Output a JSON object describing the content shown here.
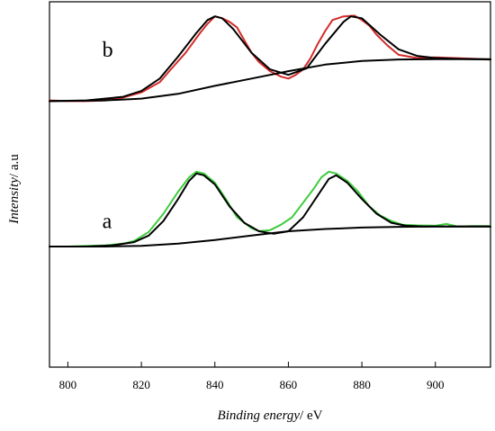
{
  "chart_data": {
    "type": "line",
    "xlabel_italic": "Binding energy",
    "xlabel_unit": "/ eV",
    "ylabel_italic": "Intensity",
    "ylabel_unit": "/ a.u",
    "xlim": [
      795,
      915
    ],
    "ylim": [
      0,
      1
    ],
    "xticks": [
      {
        "value": 800,
        "label": "800"
      },
      {
        "value": 820,
        "label": "820"
      },
      {
        "value": 840,
        "label": "840"
      },
      {
        "value": 860,
        "label": "860"
      },
      {
        "value": 880,
        "label": "880"
      },
      {
        "value": 900,
        "label": "900"
      }
    ],
    "grid": false,
    "legend": "none",
    "curve_labels": [
      {
        "text": "b",
        "x": 802,
        "y": 0.85
      },
      {
        "text": "a",
        "x": 802,
        "y": 0.38
      }
    ],
    "series": [
      {
        "name": "",
        "role": "measured-b",
        "color": "#d42a2a",
        "stroke_width": 2,
        "points": [
          [
            795,
            0.73
          ],
          [
            800,
            0.728
          ],
          [
            805,
            0.728
          ],
          [
            810,
            0.73
          ],
          [
            815,
            0.738
          ],
          [
            820,
            0.752
          ],
          [
            825,
            0.78
          ],
          [
            828,
            0.815
          ],
          [
            832,
            0.86
          ],
          [
            836,
            0.915
          ],
          [
            838,
            0.94
          ],
          [
            840,
            0.96
          ],
          [
            842,
            0.955
          ],
          [
            844,
            0.945
          ],
          [
            846,
            0.93
          ],
          [
            848,
            0.895
          ],
          [
            850,
            0.86
          ],
          [
            852,
            0.835
          ],
          [
            855,
            0.81
          ],
          [
            858,
            0.795
          ],
          [
            860,
            0.79
          ],
          [
            862,
            0.8
          ],
          [
            864,
            0.815
          ],
          [
            866,
            0.845
          ],
          [
            868,
            0.885
          ],
          [
            870,
            0.92
          ],
          [
            872,
            0.95
          ],
          [
            875,
            0.96
          ],
          [
            878,
            0.962
          ],
          [
            880,
            0.95
          ],
          [
            882,
            0.935
          ],
          [
            884,
            0.91
          ],
          [
            887,
            0.88
          ],
          [
            890,
            0.855
          ],
          [
            895,
            0.846
          ],
          [
            900,
            0.848
          ],
          [
            905,
            0.846
          ],
          [
            910,
            0.844
          ],
          [
            915,
            0.842
          ]
        ]
      },
      {
        "name": "",
        "role": "fit-b",
        "color": "#000000",
        "stroke_width": 2,
        "points": [
          [
            795,
            0.728
          ],
          [
            805,
            0.73
          ],
          [
            815,
            0.74
          ],
          [
            820,
            0.756
          ],
          [
            825,
            0.79
          ],
          [
            830,
            0.85
          ],
          [
            835,
            0.915
          ],
          [
            838,
            0.95
          ],
          [
            840,
            0.96
          ],
          [
            842,
            0.955
          ],
          [
            845,
            0.925
          ],
          [
            850,
            0.86
          ],
          [
            855,
            0.815
          ],
          [
            860,
            0.8
          ],
          [
            865,
            0.818
          ],
          [
            870,
            0.885
          ],
          [
            875,
            0.945
          ],
          [
            877,
            0.96
          ],
          [
            880,
            0.955
          ],
          [
            885,
            0.91
          ],
          [
            890,
            0.87
          ],
          [
            895,
            0.852
          ],
          [
            900,
            0.846
          ],
          [
            905,
            0.844
          ],
          [
            910,
            0.843
          ],
          [
            915,
            0.842
          ]
        ]
      },
      {
        "name": "",
        "role": "baseline-b",
        "color": "#000000",
        "stroke_width": 2,
        "points": [
          [
            795,
            0.728
          ],
          [
            810,
            0.73
          ],
          [
            820,
            0.735
          ],
          [
            830,
            0.748
          ],
          [
            840,
            0.77
          ],
          [
            850,
            0.79
          ],
          [
            860,
            0.81
          ],
          [
            870,
            0.828
          ],
          [
            880,
            0.838
          ],
          [
            890,
            0.842
          ],
          [
            900,
            0.843
          ],
          [
            915,
            0.843
          ]
        ]
      },
      {
        "name": "",
        "role": "measured-a",
        "color": "#3dcc3d",
        "stroke_width": 2,
        "points": [
          [
            795,
            0.33
          ],
          [
            800,
            0.33
          ],
          [
            805,
            0.332
          ],
          [
            810,
            0.333
          ],
          [
            815,
            0.338
          ],
          [
            818,
            0.345
          ],
          [
            822,
            0.37
          ],
          [
            826,
            0.42
          ],
          [
            830,
            0.48
          ],
          [
            833,
            0.52
          ],
          [
            835,
            0.535
          ],
          [
            837,
            0.53
          ],
          [
            840,
            0.505
          ],
          [
            843,
            0.46
          ],
          [
            846,
            0.41
          ],
          [
            850,
            0.38
          ],
          [
            852,
            0.372
          ],
          [
            855,
            0.375
          ],
          [
            858,
            0.39
          ],
          [
            861,
            0.41
          ],
          [
            864,
            0.45
          ],
          [
            867,
            0.49
          ],
          [
            869,
            0.52
          ],
          [
            871,
            0.535
          ],
          [
            873,
            0.53
          ],
          [
            876,
            0.51
          ],
          [
            879,
            0.48
          ],
          [
            882,
            0.44
          ],
          [
            885,
            0.415
          ],
          [
            888,
            0.4
          ],
          [
            891,
            0.39
          ],
          [
            895,
            0.388
          ],
          [
            900,
            0.387
          ],
          [
            903,
            0.392
          ],
          [
            906,
            0.385
          ],
          [
            910,
            0.386
          ],
          [
            915,
            0.386
          ]
        ]
      },
      {
        "name": "",
        "role": "fit-a",
        "color": "#000000",
        "stroke_width": 2,
        "points": [
          [
            795,
            0.33
          ],
          [
            805,
            0.33
          ],
          [
            812,
            0.333
          ],
          [
            818,
            0.342
          ],
          [
            822,
            0.36
          ],
          [
            826,
            0.4
          ],
          [
            830,
            0.46
          ],
          [
            833,
            0.51
          ],
          [
            835,
            0.53
          ],
          [
            837,
            0.525
          ],
          [
            840,
            0.5
          ],
          [
            844,
            0.44
          ],
          [
            848,
            0.395
          ],
          [
            852,
            0.372
          ],
          [
            856,
            0.365
          ],
          [
            860,
            0.372
          ],
          [
            864,
            0.41
          ],
          [
            868,
            0.47
          ],
          [
            871,
            0.515
          ],
          [
            873,
            0.525
          ],
          [
            876,
            0.505
          ],
          [
            880,
            0.46
          ],
          [
            884,
            0.42
          ],
          [
            888,
            0.395
          ],
          [
            892,
            0.387
          ],
          [
            897,
            0.385
          ],
          [
            905,
            0.385
          ],
          [
            915,
            0.385
          ]
        ]
      },
      {
        "name": "",
        "role": "baseline-a",
        "color": "#000000",
        "stroke_width": 2,
        "points": [
          [
            795,
            0.33
          ],
          [
            810,
            0.33
          ],
          [
            820,
            0.332
          ],
          [
            830,
            0.338
          ],
          [
            840,
            0.348
          ],
          [
            850,
            0.36
          ],
          [
            860,
            0.372
          ],
          [
            870,
            0.378
          ],
          [
            880,
            0.382
          ],
          [
            890,
            0.384
          ],
          [
            900,
            0.385
          ],
          [
            915,
            0.385
          ]
        ]
      }
    ]
  }
}
